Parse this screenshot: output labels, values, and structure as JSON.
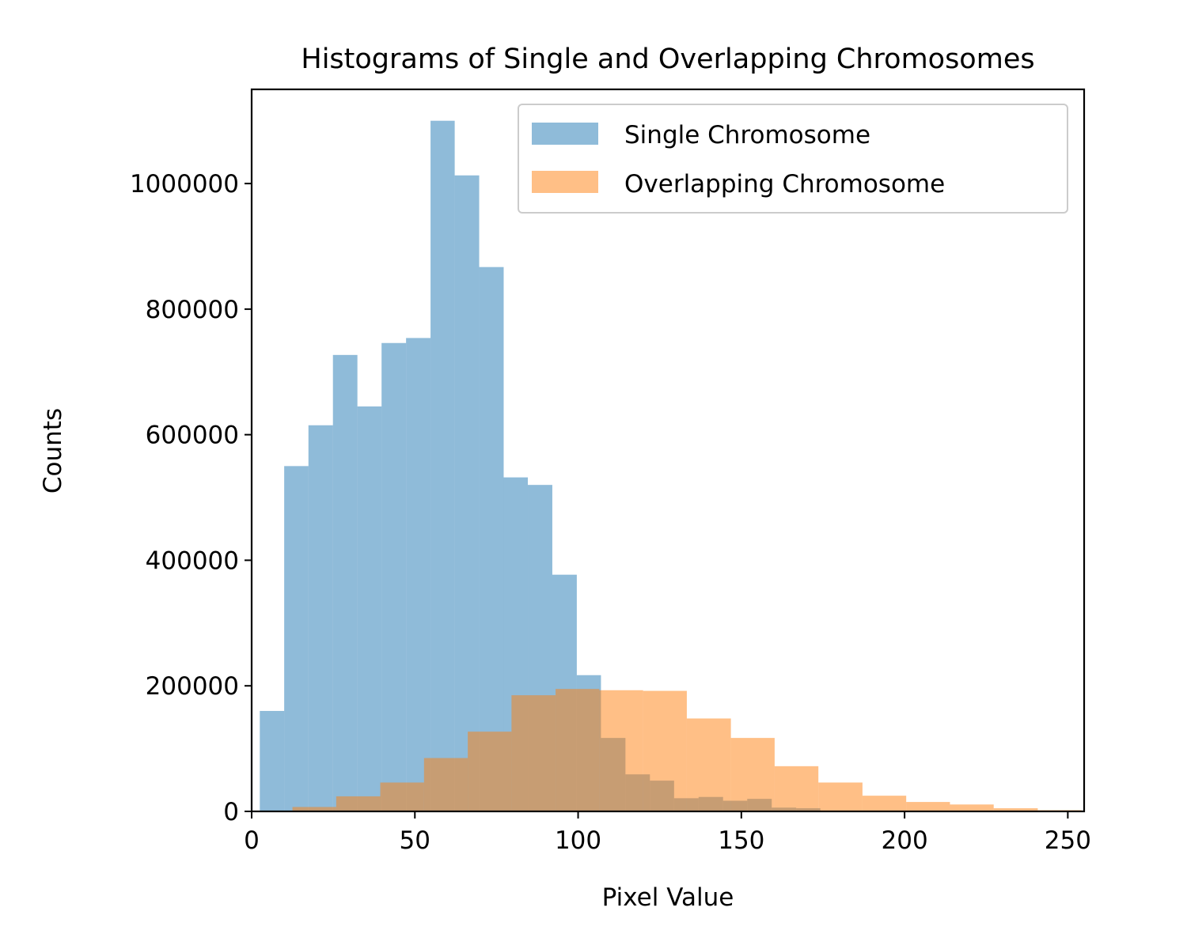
{
  "chart_data": {
    "type": "histogram",
    "title": "Histograms of Single and Overlapping Chromosomes",
    "xlabel": "Pixel Value",
    "ylabel": "Counts",
    "xlim": [
      0,
      255
    ],
    "ylim": [
      0,
      1150000
    ],
    "xticks": [
      0,
      50,
      100,
      150,
      200,
      250
    ],
    "yticks": [
      0,
      200000,
      400000,
      600000,
      800000,
      1000000
    ],
    "xtick_labels": [
      "0",
      "50",
      "100",
      "150",
      "200",
      "250"
    ],
    "ytick_labels": [
      "0",
      "200000",
      "400000",
      "600000",
      "800000",
      "1000000"
    ],
    "grid": false,
    "legend_position": "upper-right",
    "series": [
      {
        "name": "Single Chromosome",
        "color": "#1f77b4",
        "alpha": 0.5,
        "bins": [
          [
            2.5,
            9.97,
            160000
          ],
          [
            9.97,
            17.4,
            550000
          ],
          [
            17.4,
            24.9,
            615000
          ],
          [
            24.9,
            32.4,
            727000
          ],
          [
            32.4,
            39.8,
            645000
          ],
          [
            39.8,
            47.3,
            746000
          ],
          [
            47.3,
            54.8,
            754000
          ],
          [
            54.8,
            62.2,
            1100000
          ],
          [
            62.2,
            69.7,
            1013000
          ],
          [
            69.7,
            77.2,
            867000
          ],
          [
            77.2,
            84.6,
            532000
          ],
          [
            84.6,
            92.1,
            520000
          ],
          [
            92.1,
            99.6,
            377000
          ],
          [
            99.6,
            107.0,
            217000
          ],
          [
            107.0,
            114.5,
            117000
          ],
          [
            114.5,
            122.0,
            59000
          ],
          [
            122.0,
            129.4,
            49000
          ],
          [
            129.4,
            136.9,
            21000
          ],
          [
            136.9,
            144.4,
            23000
          ],
          [
            144.4,
            151.8,
            17000
          ],
          [
            151.8,
            159.3,
            20000
          ],
          [
            159.3,
            166.8,
            6000
          ],
          [
            166.8,
            174.2,
            5000
          ],
          [
            174.2,
            181.7,
            1000
          ],
          [
            181.7,
            189.2,
            500
          ]
        ]
      },
      {
        "name": "Overlapping Chromosome",
        "color": "#ff7f0e",
        "alpha": 0.5,
        "bins": [
          [
            12.5,
            25.9,
            7000
          ],
          [
            25.9,
            39.4,
            24000
          ],
          [
            39.4,
            52.8,
            46000
          ],
          [
            52.8,
            66.2,
            85000
          ],
          [
            66.2,
            79.6,
            127000
          ],
          [
            79.6,
            93.1,
            185000
          ],
          [
            93.1,
            106.5,
            195000
          ],
          [
            106.5,
            119.9,
            193000
          ],
          [
            119.9,
            133.3,
            192000
          ],
          [
            133.3,
            146.8,
            148000
          ],
          [
            146.8,
            160.2,
            117000
          ],
          [
            160.2,
            173.6,
            72000
          ],
          [
            173.6,
            187.1,
            46000
          ],
          [
            187.1,
            200.5,
            25000
          ],
          [
            200.5,
            213.9,
            15000
          ],
          [
            213.9,
            227.3,
            11000
          ],
          [
            227.3,
            240.8,
            5000
          ],
          [
            240.8,
            254.2,
            2000
          ]
        ]
      }
    ]
  }
}
